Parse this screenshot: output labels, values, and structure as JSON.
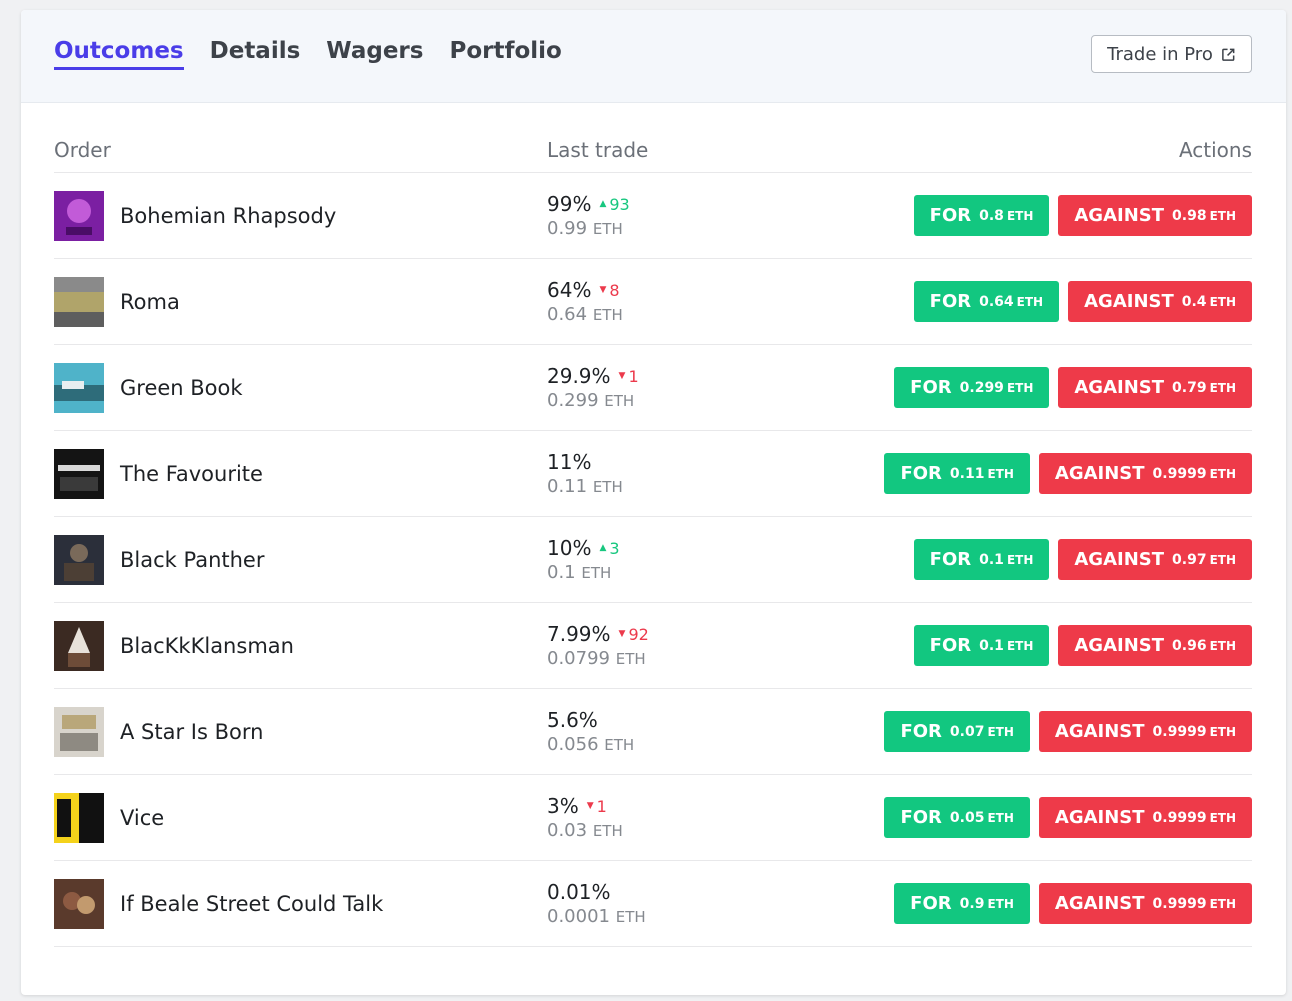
{
  "tabs": [
    {
      "label": "Outcomes"
    },
    {
      "label": "Details"
    },
    {
      "label": "Wagers"
    },
    {
      "label": "Portfolio"
    }
  ],
  "pro_button": {
    "label": "Trade in Pro",
    "icon": "external-link-icon"
  },
  "columns": {
    "order": "Order",
    "last_trade": "Last trade",
    "actions": "Actions"
  },
  "colors": {
    "accent": "#4a3de8",
    "for": "#12c780",
    "against": "#ee3a49",
    "up": "#18c77f",
    "down": "#ec3a4c"
  },
  "rows": [
    {
      "name": "Bohemian Rhapsody",
      "pct": "99%",
      "change": "93",
      "dir": "up",
      "eth": "0.99",
      "eth_unit": "ETH",
      "for_label": "FOR",
      "for_amt": "0.8",
      "for_unit": "ETH",
      "against_label": "AGAINST",
      "against_amt": "0.98",
      "against_unit": "ETH"
    },
    {
      "name": "Roma",
      "pct": "64%",
      "change": "8",
      "dir": "down",
      "eth": "0.64",
      "eth_unit": "ETH",
      "for_label": "FOR",
      "for_amt": "0.64",
      "for_unit": "ETH",
      "against_label": "AGAINST",
      "against_amt": "0.4",
      "against_unit": "ETH"
    },
    {
      "name": "Green Book",
      "pct": "29.9%",
      "change": "1",
      "dir": "down",
      "eth": "0.299",
      "eth_unit": "ETH",
      "for_label": "FOR",
      "for_amt": "0.299",
      "for_unit": "ETH",
      "against_label": "AGAINST",
      "against_amt": "0.79",
      "against_unit": "ETH"
    },
    {
      "name": "The Favourite",
      "pct": "11%",
      "change": "",
      "dir": "",
      "eth": "0.11",
      "eth_unit": "ETH",
      "for_label": "FOR",
      "for_amt": "0.11",
      "for_unit": "ETH",
      "against_label": "AGAINST",
      "against_amt": "0.9999",
      "against_unit": "ETH"
    },
    {
      "name": "Black Panther",
      "pct": "10%",
      "change": "3",
      "dir": "up",
      "eth": "0.1",
      "eth_unit": "ETH",
      "for_label": "FOR",
      "for_amt": "0.1",
      "for_unit": "ETH",
      "against_label": "AGAINST",
      "against_amt": "0.97",
      "against_unit": "ETH"
    },
    {
      "name": "BlacKkKlansman",
      "pct": "7.99%",
      "change": "92",
      "dir": "down",
      "eth": "0.0799",
      "eth_unit": "ETH",
      "for_label": "FOR",
      "for_amt": "0.1",
      "for_unit": "ETH",
      "against_label": "AGAINST",
      "against_amt": "0.96",
      "against_unit": "ETH"
    },
    {
      "name": "A Star Is Born",
      "pct": "5.6%",
      "change": "",
      "dir": "",
      "eth": "0.056",
      "eth_unit": "ETH",
      "for_label": "FOR",
      "for_amt": "0.07",
      "for_unit": "ETH",
      "against_label": "AGAINST",
      "against_amt": "0.9999",
      "against_unit": "ETH"
    },
    {
      "name": "Vice",
      "pct": "3%",
      "change": "1",
      "dir": "down",
      "eth": "0.03",
      "eth_unit": "ETH",
      "for_label": "FOR",
      "for_amt": "0.05",
      "for_unit": "ETH",
      "against_label": "AGAINST",
      "against_amt": "0.9999",
      "against_unit": "ETH"
    },
    {
      "name": "If Beale Street Could Talk",
      "pct": "0.01%",
      "change": "",
      "dir": "",
      "eth": "0.0001",
      "eth_unit": "ETH",
      "for_label": "FOR",
      "for_amt": "0.9",
      "for_unit": "ETH",
      "against_label": "AGAINST",
      "against_amt": "0.9999",
      "against_unit": "ETH"
    }
  ]
}
